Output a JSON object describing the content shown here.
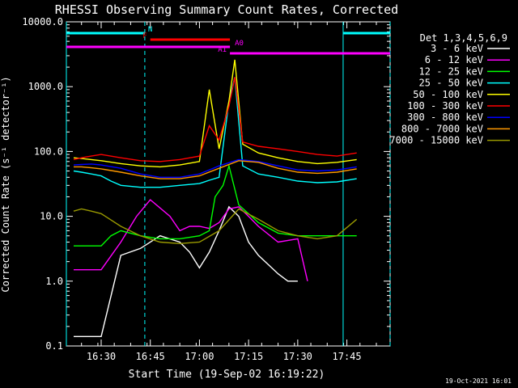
{
  "chart_data": {
    "type": "line",
    "title": "RHESSI Observing Summary Count Rates, Corrected",
    "xlabel": "Start Time (19-Sep-02 16:19:22)",
    "ylabel": "Corrected Count Rate (s⁻¹ detector⁻¹)",
    "y_scale": "log",
    "ylim": [
      0.1,
      10000
    ],
    "xlim": [
      16.323,
      17.97
    ],
    "x_tick_labels": [
      "16:30",
      "16:45",
      "17:00",
      "17:15",
      "17:30",
      "17:45"
    ],
    "x_tick_values": [
      16.5,
      16.75,
      17.0,
      17.25,
      17.5,
      17.75
    ],
    "y_tick_labels": [
      "0.1",
      "1.0",
      "10.0",
      "100.0",
      "1000.0",
      "10000.0"
    ],
    "y_tick_values": [
      0.1,
      1,
      10,
      100,
      1000,
      10000
    ],
    "legend_title": "Det 1,3,4,5,6,9",
    "legend_position": "right",
    "timestamp": "19-Oct-2021 16:01",
    "series": [
      {
        "name": "3 - 6 keV",
        "color": "#ffffff",
        "x": [
          16.36,
          16.4,
          16.45,
          16.5,
          16.6,
          16.7,
          16.8,
          16.9,
          16.95,
          17.0,
          17.05,
          17.1,
          17.15,
          17.2,
          17.25,
          17.3,
          17.35,
          17.4,
          17.45,
          17.5
        ],
        "y": [
          0.14,
          0.14,
          0.14,
          0.14,
          2.5,
          3.2,
          5.0,
          4.0,
          2.8,
          1.6,
          2.8,
          6.0,
          14,
          10,
          4.0,
          2.5,
          1.8,
          1.3,
          1.0,
          1.0
        ]
      },
      {
        "name": "6 - 12 keV",
        "color": "#ff00ff",
        "x": [
          16.36,
          16.4,
          16.45,
          16.5,
          16.6,
          16.68,
          16.75,
          16.85,
          16.9,
          16.95,
          17.0,
          17.05,
          17.1,
          17.15,
          17.2,
          17.25,
          17.3,
          17.4,
          17.5,
          17.55
        ],
        "y": [
          1.5,
          1.5,
          1.5,
          1.5,
          4.0,
          10,
          18,
          10,
          6.0,
          7.0,
          7.0,
          6.5,
          8.0,
          13,
          14,
          10,
          7.0,
          4.0,
          4.5,
          1.0
        ]
      },
      {
        "name": "12 - 25 keV",
        "color": "#00ff00",
        "x": [
          16.36,
          16.4,
          16.45,
          16.5,
          16.55,
          16.6,
          16.7,
          16.8,
          16.9,
          17.0,
          17.05,
          17.08,
          17.12,
          17.15,
          17.2,
          17.3,
          17.4,
          17.5,
          17.6,
          17.7,
          17.8
        ],
        "y": [
          3.5,
          3.5,
          3.5,
          3.5,
          5.0,
          6.0,
          5.0,
          4.5,
          4.5,
          5.0,
          6.0,
          20,
          30,
          60,
          15,
          8.0,
          5.5,
          5.0,
          5.0,
          5.0,
          5.0
        ]
      },
      {
        "name": "25 - 50 keV",
        "color": "#00ffff",
        "x": [
          16.36,
          16.4,
          16.45,
          16.5,
          16.55,
          16.6,
          16.7,
          16.8,
          16.9,
          17.0,
          17.05,
          17.1,
          17.15,
          17.18,
          17.22,
          17.3,
          17.4,
          17.5,
          17.6,
          17.7,
          17.8
        ],
        "y": [
          50,
          48,
          45,
          42,
          35,
          30,
          28,
          28,
          30,
          32,
          36,
          40,
          600,
          1400,
          60,
          45,
          40,
          35,
          33,
          34,
          38
        ]
      },
      {
        "name": "50 - 100 keV",
        "color": "#ffff00",
        "x": [
          16.36,
          16.4,
          16.45,
          16.5,
          16.6,
          16.7,
          16.8,
          16.9,
          17.0,
          17.05,
          17.1,
          17.15,
          17.18,
          17.22,
          17.3,
          17.4,
          17.5,
          17.6,
          17.7,
          17.8
        ],
        "y": [
          80,
          78,
          75,
          72,
          65,
          60,
          58,
          62,
          70,
          900,
          110,
          600,
          2600,
          130,
          95,
          80,
          70,
          65,
          68,
          75
        ]
      },
      {
        "name": "100 - 300 keV",
        "color": "#ff0000",
        "x": [
          16.36,
          16.4,
          16.45,
          16.5,
          16.6,
          16.7,
          16.8,
          16.9,
          17.0,
          17.05,
          17.1,
          17.15,
          17.18,
          17.22,
          17.3,
          17.4,
          17.5,
          17.6,
          17.7,
          17.8
        ],
        "y": [
          75,
          80,
          85,
          90,
          80,
          72,
          70,
          75,
          85,
          250,
          150,
          500,
          1400,
          140,
          120,
          110,
          100,
          90,
          85,
          95
        ]
      },
      {
        "name": "300 - 800 keV",
        "color": "#0000ff",
        "x": [
          16.36,
          16.4,
          16.45,
          16.5,
          16.6,
          16.7,
          16.8,
          16.9,
          17.0,
          17.1,
          17.2,
          17.3,
          17.4,
          17.5,
          17.6,
          17.7,
          17.8
        ],
        "y": [
          62,
          63,
          64,
          62,
          55,
          45,
          40,
          40,
          45,
          60,
          75,
          70,
          60,
          52,
          50,
          52,
          58
        ]
      },
      {
        "name": "800 - 7000 keV",
        "color": "#ff9900",
        "x": [
          16.36,
          16.4,
          16.45,
          16.5,
          16.6,
          16.7,
          16.8,
          16.9,
          17.0,
          17.1,
          17.2,
          17.3,
          17.4,
          17.5,
          17.6,
          17.7,
          17.8
        ],
        "y": [
          58,
          58,
          56,
          54,
          48,
          42,
          38,
          38,
          42,
          55,
          72,
          68,
          55,
          48,
          46,
          48,
          54
        ]
      },
      {
        "name": "7000 - 15000 keV",
        "color": "#999900",
        "x": [
          16.36,
          16.4,
          16.45,
          16.5,
          16.6,
          16.7,
          16.8,
          16.9,
          17.0,
          17.1,
          17.2,
          17.3,
          17.4,
          17.5,
          17.6,
          17.7,
          17.8
        ],
        "y": [
          12,
          13,
          12,
          11,
          7.0,
          5.0,
          4.0,
          3.8,
          4.0,
          6.0,
          13,
          9.0,
          6.0,
          5.0,
          4.5,
          5.0,
          9.0
        ]
      }
    ],
    "vertical_lines": [
      {
        "x": 16.323,
        "color": "#00ffff",
        "style": "solid"
      },
      {
        "x": 16.722,
        "color": "#00ffff",
        "style": "dashed"
      },
      {
        "x": 17.731,
        "color": "#00ffff",
        "style": "solid"
      },
      {
        "x": 17.97,
        "color": "#00ffff",
        "style": "dashed"
      }
    ],
    "bars": [
      {
        "label": "N",
        "color": "#00ffff",
        "segments": [
          [
            16.323,
            16.722
          ],
          [
            17.731,
            17.97
          ]
        ],
        "level": 0
      },
      {
        "label": "F",
        "color": "#ff0000",
        "segments": [
          [
            16.75,
            17.155
          ]
        ],
        "level": 1
      },
      {
        "label": "A0",
        "color": "#ff00ff",
        "segments": [
          [
            16.323,
            17.155
          ]
        ],
        "level": 2
      },
      {
        "label": "A1",
        "color": "#ff00ff",
        "segments": [
          [
            17.155,
            17.97
          ]
        ],
        "level": 3
      }
    ]
  }
}
